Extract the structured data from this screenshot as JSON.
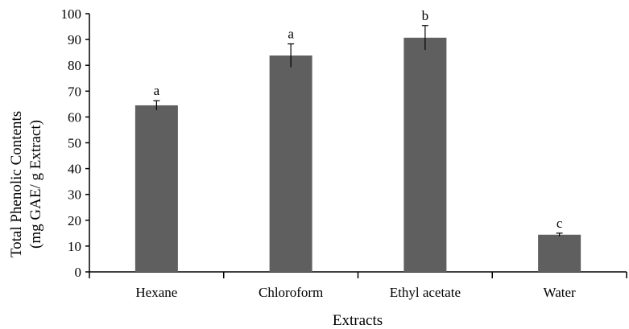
{
  "chart_data": {
    "type": "bar",
    "title": "",
    "xlabel": "Extracts",
    "ylabel_lines": [
      "Total Phenolic Contents",
      "(mg GAE/ g Extract)"
    ],
    "categories": [
      "Hexane",
      "Chloroform",
      "Ethyl acetate",
      "Water"
    ],
    "series": [
      {
        "values": [
          64.5,
          83.8,
          90.7,
          14.4
        ],
        "errors": [
          1.8,
          4.5,
          4.7,
          0.6
        ],
        "letters": [
          "a",
          "a",
          "b",
          "c"
        ]
      }
    ],
    "ylim": [
      0,
      100
    ],
    "yticks": [
      0,
      10,
      20,
      30,
      40,
      50,
      60,
      70,
      80,
      90,
      100
    ],
    "grid": false,
    "legend": "none",
    "bar_color": "#5f5f5f"
  }
}
